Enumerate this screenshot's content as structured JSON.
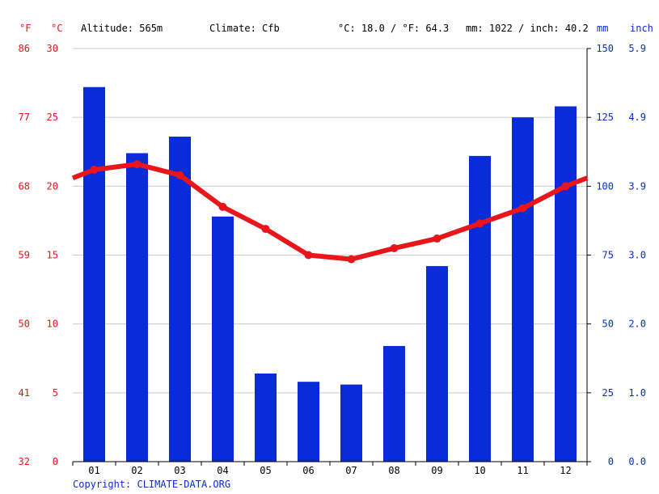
{
  "header": {
    "unit_f": "°F",
    "unit_c": "°C",
    "altitude": "Altitude: 565m",
    "climate": "Climate: Cfb",
    "avg_temp": "°C: 18.0 / °F: 64.3",
    "precip": "mm: 1022 / inch: 40.2",
    "unit_mm": "mm",
    "unit_inch": "inch"
  },
  "footer": {
    "copyright": "Copyright: CLIMATE-DATA.ORG"
  },
  "colors": {
    "temperature": "#e8151b",
    "precipitation": "#0a2bd8",
    "grid": "#cccccc"
  },
  "chart_data": {
    "type": "bar+line",
    "categories": [
      "01",
      "02",
      "03",
      "04",
      "05",
      "06",
      "07",
      "08",
      "09",
      "10",
      "11",
      "12"
    ],
    "series": [
      {
        "values": [
          136,
          112,
          118,
          89,
          32,
          29,
          28,
          42,
          71,
          111,
          125,
          129
        ]
      },
      {
        "values": [
          21.2,
          21.6,
          20.8,
          18.5,
          16.9,
          15.0,
          14.7,
          15.5,
          16.2,
          17.3,
          18.4,
          20.0
        ]
      }
    ],
    "y_left_c": {
      "ticks": [
        "30",
        "25",
        "20",
        "15",
        "10",
        "5",
        "0"
      ],
      "range": [
        0,
        30
      ]
    },
    "y_left_f": {
      "ticks": [
        "86",
        "77",
        "68",
        "59",
        "50",
        "41",
        "32"
      ]
    },
    "y_right_mm": {
      "ticks": [
        "150",
        "125",
        "100",
        "75",
        "50",
        "25",
        "0"
      ],
      "range": [
        0,
        150
      ]
    },
    "y_right_inch": {
      "ticks": [
        "5.9",
        "4.9",
        "3.9",
        "3.0",
        "2.0",
        "1.0",
        "0.0"
      ]
    },
    "grid": true
  }
}
